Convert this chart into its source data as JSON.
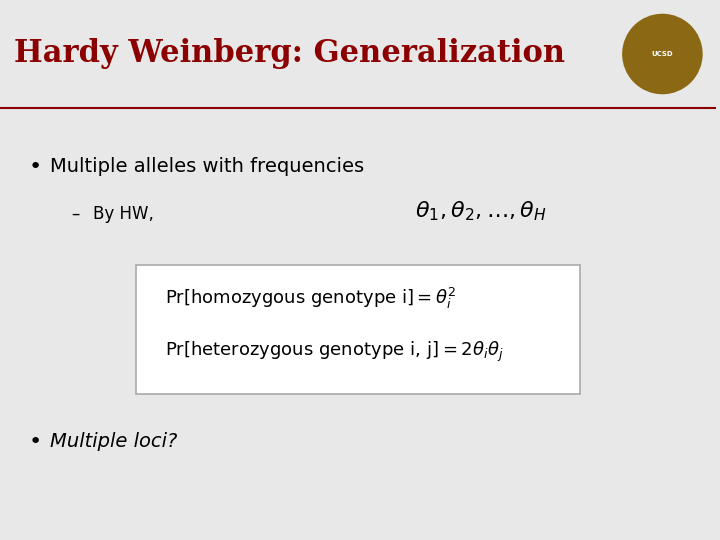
{
  "title": "Hardy Weinberg: Generalization",
  "title_color": "#8B0000",
  "title_fontsize": 22,
  "bg_color": "#E8E8E8",
  "header_bg": "#E8E8E8",
  "line_color": "#8B0000",
  "bullet1": "Multiple alleles with frequencies",
  "sub_bullet": "By HW,",
  "freq_formula": "\\theta_1, \\theta_2, \\ldots, \\theta_H",
  "box_line1": "Pr[homozygous genotype i] $= \\theta_i^2$",
  "box_line2": "Pr[heterozygous genotype i, j] $= 2\\theta_i\\theta_j$",
  "bullet2": "Multiple loci?",
  "box_bg": "#FFFFFF",
  "text_color": "#000000"
}
